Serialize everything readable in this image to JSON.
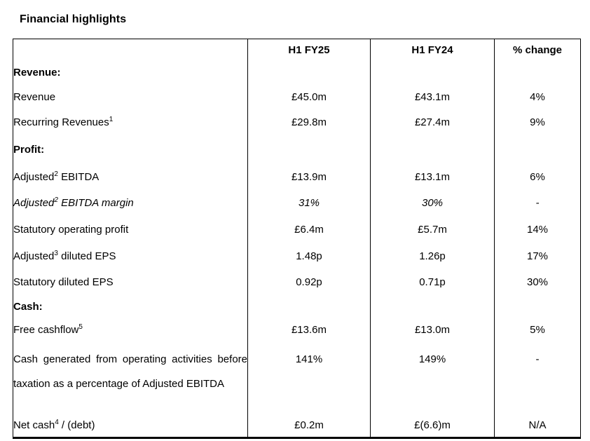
{
  "page": {
    "title": "Financial highlights"
  },
  "table": {
    "columns": [
      "",
      "H1 FY25",
      "H1 FY24",
      "% change"
    ],
    "rows": [
      {
        "type": "section",
        "label_parts": [
          {
            "t": "Revenue:"
          }
        ],
        "values": [
          "",
          "",
          ""
        ]
      },
      {
        "type": "data",
        "label_parts": [
          {
            "t": "Revenue"
          }
        ],
        "values": [
          "£45.0m",
          "£43.1m",
          "4%"
        ]
      },
      {
        "type": "data",
        "label_parts": [
          {
            "t": "Recurring Revenues"
          },
          {
            "s": "1"
          }
        ],
        "values": [
          "£29.8m",
          "£27.4m",
          "9%"
        ]
      },
      {
        "type": "section",
        "label_parts": [
          {
            "t": "Profit:"
          }
        ],
        "values": [
          "",
          "",
          ""
        ]
      },
      {
        "type": "data",
        "label_parts": [
          {
            "t": "Adjusted"
          },
          {
            "s": "2"
          },
          {
            "t": " EBITDA"
          }
        ],
        "values": [
          "£13.9m",
          "£13.1m",
          "6%"
        ]
      },
      {
        "type": "italic",
        "label_parts": [
          {
            "t": "Adjusted"
          },
          {
            "s": "2"
          },
          {
            "t": " EBITDA margin"
          }
        ],
        "values": [
          "31%",
          "30%",
          "-"
        ]
      },
      {
        "type": "data",
        "label_parts": [
          {
            "t": "Statutory operating profit"
          }
        ],
        "values": [
          "£6.4m",
          "£5.7m",
          "14%"
        ]
      },
      {
        "type": "data",
        "label_parts": [
          {
            "t": "Adjusted"
          },
          {
            "s": "3"
          },
          {
            "t": " diluted EPS"
          }
        ],
        "values": [
          "1.48p",
          "1.26p",
          "17%"
        ]
      },
      {
        "type": "data",
        "label_parts": [
          {
            "t": "Statutory diluted EPS"
          }
        ],
        "values": [
          "0.92p",
          "0.71p",
          "30%"
        ]
      },
      {
        "type": "section",
        "label_parts": [
          {
            "t": "Cash:"
          }
        ],
        "values": [
          "",
          "",
          ""
        ]
      },
      {
        "type": "data",
        "label_parts": [
          {
            "t": "Free cashflow"
          },
          {
            "s": "5"
          }
        ],
        "values": [
          "£13.6m",
          "£13.0m",
          "5%"
        ]
      },
      {
        "type": "data",
        "justify": true,
        "label_parts": [
          {
            "t": "Cash generated from operating activities before taxation as a percentage of Adjusted EBITDA"
          }
        ],
        "values": [
          "141%",
          "149%",
          "-"
        ]
      },
      {
        "type": "data",
        "label_parts": [
          {
            "t": "Net cash"
          },
          {
            "s": "4"
          },
          {
            "t": " / (debt)"
          }
        ],
        "values": [
          "£0.2m",
          "£(6.6)m",
          "N/A"
        ]
      }
    ]
  }
}
